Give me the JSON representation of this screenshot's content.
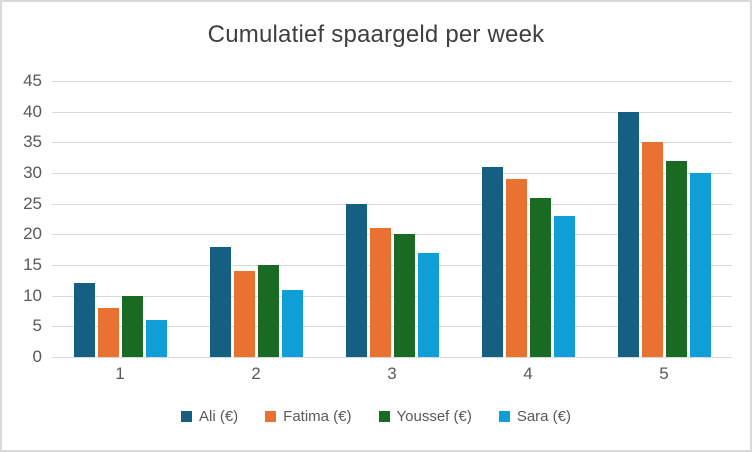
{
  "chart_data": {
    "type": "bar",
    "title": "Cumulatief spaargeld per week",
    "categories": [
      "1",
      "2",
      "3",
      "4",
      "5"
    ],
    "series": [
      {
        "name": "Ali (€)",
        "color": "#156082",
        "values": [
          12,
          18,
          25,
          31,
          40
        ]
      },
      {
        "name": "Fatima (€)",
        "color": "#E97132",
        "values": [
          8,
          14,
          21,
          29,
          35
        ]
      },
      {
        "name": "Youssef (€)",
        "color": "#196B24",
        "values": [
          10,
          15,
          20,
          26,
          32
        ]
      },
      {
        "name": "Sara (€)",
        "color": "#0F9ED5",
        "values": [
          6,
          11,
          17,
          23,
          30
        ]
      }
    ],
    "xlabel": "",
    "ylabel": "",
    "ylim": [
      0,
      45
    ],
    "ytick_step": 5,
    "yticks": [
      "45",
      "40",
      "35",
      "30",
      "25",
      "20",
      "15",
      "10",
      "5",
      "0"
    ],
    "grid": true,
    "legend_position": "bottom",
    "colors": {
      "grid": "#D9D9D9",
      "axis_text": "#595959",
      "title_text": "#3F3F3F",
      "frame_border": "#D9D9D9",
      "background": "#FFFFFF"
    }
  }
}
